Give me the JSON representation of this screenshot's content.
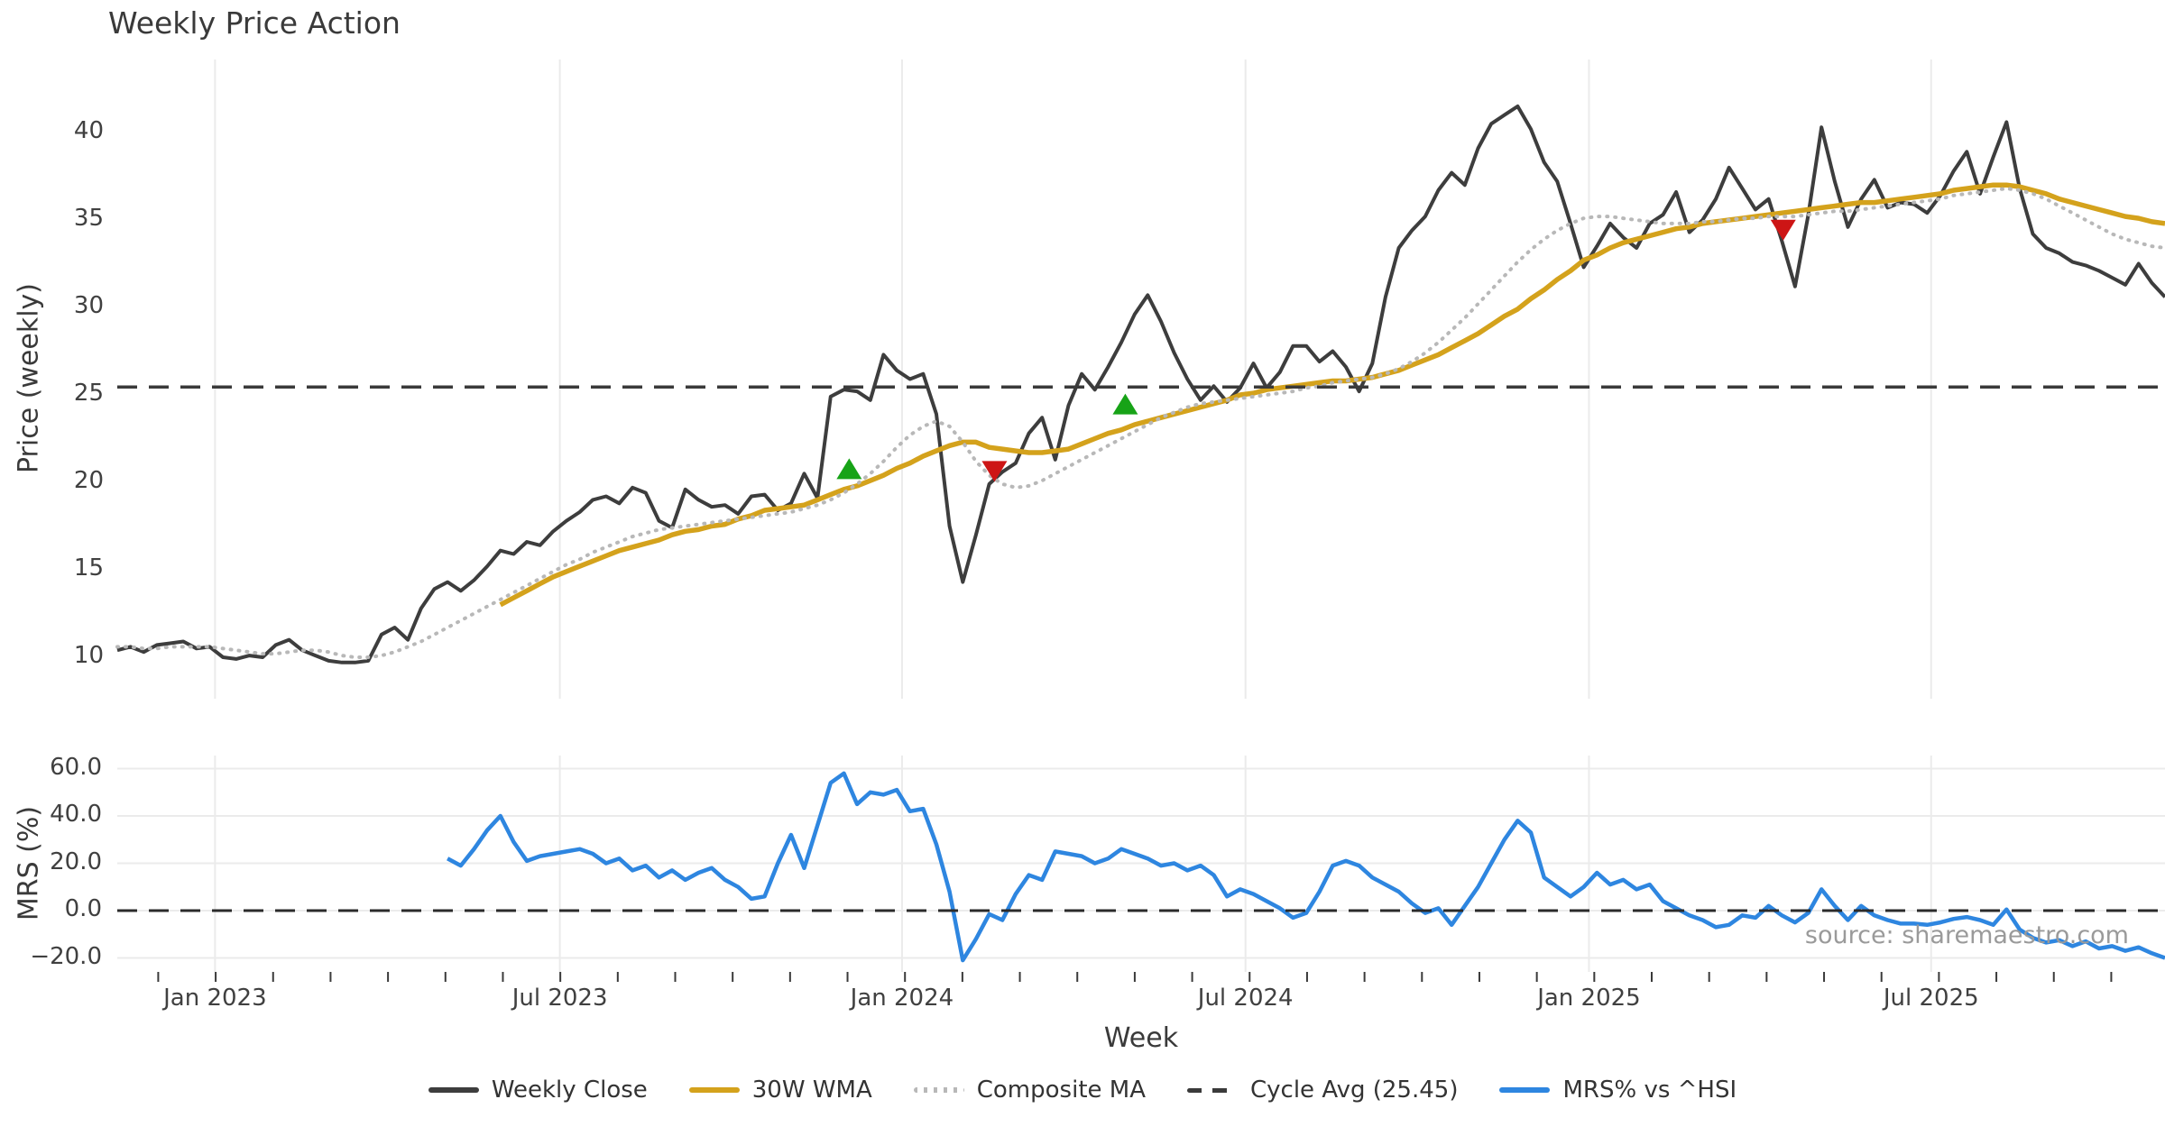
{
  "title": "Weekly Price Action",
  "source_credit": "source: sharemaestro.com",
  "colors": {
    "close": "#3d3d3d",
    "wma": "#d4a21c",
    "composite": "#b8b8b8",
    "cycle": "#3a3a3a",
    "mrs": "#2e86e0",
    "zero": "#2b2b2b",
    "buy": "#17a317",
    "sell": "#cd1515",
    "grid": "#ebebeb",
    "text": "#3a3a3a",
    "muted": "#9a9a9a"
  },
  "legend": {
    "items": [
      {
        "label": "Weekly Close",
        "swatch": "solid-close"
      },
      {
        "label": "30W WMA",
        "swatch": "solid-wma"
      },
      {
        "label": "Composite MA",
        "swatch": "dotted-composite"
      },
      {
        "label": "Cycle Avg (25.45)",
        "swatch": "dashed-cycle"
      },
      {
        "label": "MRS% vs ^HSI",
        "swatch": "solid-mrs"
      }
    ]
  },
  "chart_data": {
    "type": "line",
    "title": "Weekly Price Action",
    "x_unit": "week_index",
    "x_axis": {
      "label": "Week",
      "ticks": [
        {
          "index": 7.4,
          "label": "Jan 2023"
        },
        {
          "index": 33.5,
          "label": "Jul 2023"
        },
        {
          "index": 59.4,
          "label": "Jan 2024"
        },
        {
          "index": 85.4,
          "label": "Jul 2024"
        },
        {
          "index": 111.4,
          "label": "Jan 2025"
        },
        {
          "index": 137.3,
          "label": "Jul 2025"
        }
      ],
      "minor_tick_start_index": 3.1,
      "minor_tick_step": 4.348,
      "total_weeks": 156
    },
    "panels": [
      {
        "y_label": "Price (weekly)",
        "ylim": [
          7.5,
          44.2
        ],
        "grid": "vertical-only",
        "y_ticks": [
          {
            "value": 10,
            "label": "10"
          },
          {
            "value": 15,
            "label": "15"
          },
          {
            "value": 20,
            "label": "20"
          },
          {
            "value": 25,
            "label": "25"
          },
          {
            "value": 30,
            "label": "30"
          },
          {
            "value": 35,
            "label": "35"
          },
          {
            "value": 40,
            "label": "40"
          }
        ]
      },
      {
        "y_label": "MRS (%)",
        "ylim": [
          -26,
          65.5
        ],
        "grid": "both",
        "y_ticks": [
          {
            "value": -20,
            "label": "−20.0"
          },
          {
            "value": 0,
            "label": "0.0"
          },
          {
            "value": 20,
            "label": "20.0"
          },
          {
            "value": 40,
            "label": "40.0"
          },
          {
            "value": 60,
            "label": "60.0"
          }
        ]
      }
    ],
    "cycle_avg": 25.45,
    "series": [
      {
        "name": "Weekly Close",
        "panel": 0,
        "style": "solid",
        "color_key": "close",
        "width": 4,
        "start_index": 0,
        "values": [
          10.4,
          10.6,
          10.3,
          10.7,
          10.8,
          10.9,
          10.5,
          10.6,
          10.0,
          9.9,
          10.1,
          10.0,
          10.7,
          11.0,
          10.4,
          10.1,
          9.8,
          9.7,
          9.7,
          9.8,
          11.3,
          11.7,
          11.0,
          12.8,
          13.9,
          14.3,
          13.8,
          14.4,
          15.2,
          16.1,
          15.9,
          16.6,
          16.4,
          17.2,
          17.8,
          18.3,
          19.0,
          19.2,
          18.8,
          19.7,
          19.4,
          17.8,
          17.4,
          19.6,
          19.0,
          18.6,
          18.7,
          18.2,
          19.2,
          19.3,
          18.4,
          18.8,
          20.5,
          19.1,
          24.9,
          25.3,
          25.2,
          24.7,
          27.3,
          26.4,
          25.9,
          26.2,
          23.9,
          17.5,
          14.3,
          17.0,
          19.9,
          20.6,
          21.1,
          22.8,
          23.7,
          21.3,
          24.4,
          26.2,
          25.3,
          26.6,
          28.0,
          29.6,
          30.7,
          29.2,
          27.4,
          25.9,
          24.7,
          25.5,
          24.6,
          25.4,
          26.8,
          25.4,
          26.3,
          27.8,
          27.8,
          26.9,
          27.5,
          26.6,
          25.2,
          26.8,
          30.6,
          33.4,
          34.4,
          35.2,
          36.7,
          37.7,
          37.0,
          39.1,
          40.5,
          41.0,
          41.5,
          40.2,
          38.3,
          37.2,
          34.8,
          32.3,
          33.5,
          34.8,
          34.0,
          33.4,
          34.8,
          35.3,
          36.6,
          34.3,
          35.0,
          36.2,
          38.0,
          36.8,
          35.6,
          36.2,
          33.8,
          31.2,
          35.3,
          40.3,
          37.2,
          34.6,
          36.2,
          37.3,
          35.7,
          36.0,
          35.9,
          35.4,
          36.4,
          37.8,
          38.9,
          36.5,
          38.6,
          40.6,
          36.8,
          34.2,
          33.4,
          33.1,
          32.6,
          32.4,
          32.1,
          31.7,
          31.3,
          32.5,
          31.4,
          30.6
        ]
      },
      {
        "name": "30W WMA",
        "panel": 0,
        "style": "solid",
        "color_key": "wma",
        "width": 5.5,
        "start_index": 29,
        "values": [
          13.0,
          13.4,
          13.8,
          14.2,
          14.6,
          14.9,
          15.2,
          15.5,
          15.8,
          16.1,
          16.3,
          16.5,
          16.7,
          17.0,
          17.2,
          17.3,
          17.5,
          17.6,
          17.9,
          18.1,
          18.4,
          18.5,
          18.6,
          18.7,
          19.0,
          19.3,
          19.6,
          19.8,
          20.1,
          20.4,
          20.8,
          21.1,
          21.5,
          21.8,
          22.1,
          22.3,
          22.3,
          22.0,
          21.9,
          21.8,
          21.7,
          21.7,
          21.8,
          21.9,
          22.2,
          22.5,
          22.8,
          23.0,
          23.3,
          23.5,
          23.7,
          23.9,
          24.1,
          24.3,
          24.5,
          24.7,
          25.0,
          25.1,
          25.3,
          25.4,
          25.5,
          25.6,
          25.7,
          25.8,
          25.8,
          25.9,
          26.0,
          26.2,
          26.4,
          26.7,
          27.0,
          27.3,
          27.7,
          28.1,
          28.5,
          29.0,
          29.5,
          29.9,
          30.5,
          31.0,
          31.6,
          32.1,
          32.7,
          33.0,
          33.4,
          33.7,
          33.9,
          34.1,
          34.3,
          34.5,
          34.6,
          34.8,
          34.9,
          35.0,
          35.1,
          35.2,
          35.3,
          35.4,
          35.5,
          35.6,
          35.7,
          35.8,
          35.9,
          36.0,
          36.0,
          36.1,
          36.2,
          36.3,
          36.4,
          36.5,
          36.7,
          36.8,
          36.9,
          37.0,
          37.0,
          36.9,
          36.7,
          36.5,
          36.2,
          36.0,
          35.8,
          35.6,
          35.4,
          35.2,
          35.1,
          34.9,
          34.8
        ]
      },
      {
        "name": "Composite MA",
        "panel": 0,
        "style": "dotted",
        "color_key": "composite",
        "width": 4,
        "start_index": 0,
        "values": [
          10.6,
          10.6,
          10.5,
          10.5,
          10.6,
          10.6,
          10.6,
          10.6,
          10.5,
          10.4,
          10.3,
          10.2,
          10.2,
          10.3,
          10.4,
          10.4,
          10.3,
          10.1,
          10.0,
          10.0,
          10.1,
          10.3,
          10.6,
          10.9,
          11.3,
          11.7,
          12.1,
          12.5,
          12.9,
          13.3,
          13.7,
          14.1,
          14.5,
          14.9,
          15.3,
          15.6,
          16.0,
          16.3,
          16.6,
          16.9,
          17.1,
          17.3,
          17.4,
          17.5,
          17.6,
          17.7,
          17.8,
          17.9,
          18.0,
          18.1,
          18.2,
          18.3,
          18.5,
          18.7,
          19.0,
          19.4,
          19.9,
          20.5,
          21.2,
          22.0,
          22.7,
          23.2,
          23.5,
          23.2,
          22.3,
          21.2,
          20.4,
          19.9,
          19.7,
          19.8,
          20.1,
          20.5,
          20.9,
          21.3,
          21.7,
          22.1,
          22.5,
          22.9,
          23.3,
          23.7,
          24.0,
          24.3,
          24.5,
          24.6,
          24.7,
          24.8,
          24.9,
          25.0,
          25.1,
          25.2,
          25.4,
          25.5,
          25.7,
          25.8,
          25.9,
          26.0,
          26.2,
          26.5,
          26.9,
          27.4,
          28.0,
          28.7,
          29.4,
          30.2,
          31.0,
          31.8,
          32.6,
          33.3,
          33.9,
          34.4,
          34.8,
          35.1,
          35.2,
          35.2,
          35.1,
          35.0,
          34.9,
          34.8,
          34.8,
          34.8,
          34.9,
          34.9,
          35.0,
          35.1,
          35.1,
          35.2,
          35.2,
          35.2,
          35.3,
          35.4,
          35.5,
          35.5,
          35.6,
          35.7,
          35.8,
          35.9,
          36.0,
          36.1,
          36.2,
          36.4,
          36.5,
          36.6,
          36.7,
          36.8,
          36.7,
          36.5,
          36.2,
          35.8,
          35.4,
          35.0,
          34.6,
          34.2,
          33.9,
          33.7,
          33.5,
          33.4
        ]
      },
      {
        "name": "Cycle Avg (25.45)",
        "panel": 0,
        "style": "dashed",
        "color_key": "cycle",
        "width": 3.5,
        "constant": 25.45
      },
      {
        "name": "MRS% vs ^HSI",
        "panel": 1,
        "style": "solid",
        "color_key": "mrs",
        "width": 4.5,
        "start_index": 25,
        "values": [
          22,
          19,
          26,
          34,
          40,
          29,
          21,
          23,
          24,
          25,
          26,
          24,
          20,
          22,
          17,
          19,
          14,
          17,
          13,
          16,
          18,
          13,
          10,
          5,
          6,
          20,
          32,
          18,
          36,
          54,
          58,
          45,
          50,
          49,
          51,
          42,
          43,
          28,
          8,
          -21,
          -12,
          -1.5,
          -4,
          7,
          15,
          13,
          25,
          24,
          23,
          20,
          22,
          26,
          24,
          22,
          19,
          20,
          17,
          19,
          15,
          6,
          9,
          7,
          4,
          1,
          -3,
          -1,
          8,
          19,
          21,
          19,
          14,
          11,
          8,
          3,
          -1,
          1,
          -6,
          2,
          10,
          20,
          30,
          38,
          33,
          14,
          10,
          6,
          10,
          16,
          11,
          13,
          9,
          11,
          4,
          1,
          -2,
          -4,
          -7,
          -6,
          -2,
          -3,
          2,
          -2,
          -5,
          -1,
          9,
          2,
          -4,
          2,
          -2,
          -4,
          -5.5,
          -5.5,
          -6,
          -5,
          -3.5,
          -2.7,
          -4,
          -6,
          0.5,
          -8,
          -11.5,
          -13.5,
          -12.5,
          -15,
          -13,
          -16,
          -15,
          -17,
          -15.5,
          -18,
          -20
        ]
      },
      {
        "name": "Zero Line",
        "panel": 1,
        "style": "dashed",
        "color_key": "zero",
        "width": 3,
        "constant": 0
      }
    ],
    "markers": [
      {
        "signal": "buy",
        "shape": "triangle-up",
        "color_key": "buy",
        "week_index": 55.4,
        "value": 20.7
      },
      {
        "signal": "sell",
        "shape": "triangle-down",
        "color_key": "sell",
        "week_index": 66.4,
        "value": 20.7
      },
      {
        "signal": "buy",
        "shape": "triangle-up",
        "color_key": "buy",
        "week_index": 76.3,
        "value": 24.4
      },
      {
        "signal": "sell",
        "shape": "triangle-down",
        "color_key": "sell",
        "week_index": 126.1,
        "value": 34.5
      }
    ]
  }
}
